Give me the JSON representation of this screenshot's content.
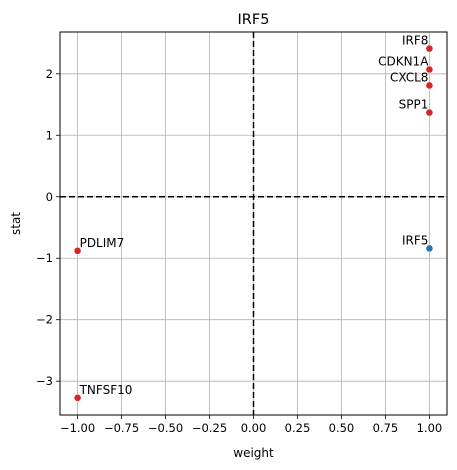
{
  "chart_data": {
    "type": "scatter",
    "title": "IRF5",
    "xlabel": "weight",
    "ylabel": "stat",
    "xlim": [
      -1.1,
      1.1
    ],
    "ylim": [
      -3.55,
      2.68
    ],
    "xticks": [
      -1.0,
      -0.75,
      -0.5,
      -0.25,
      0.0,
      0.25,
      0.5,
      0.75,
      1.0
    ],
    "xtick_labels": [
      "−1.00",
      "−0.75",
      "−0.50",
      "−0.25",
      "0.00",
      "0.25",
      "0.50",
      "0.75",
      "1.00"
    ],
    "yticks": [
      -3,
      -2,
      -1,
      0,
      1,
      2
    ],
    "ytick_labels": [
      "−3",
      "−2",
      "−1",
      "0",
      "1",
      "2"
    ],
    "grid": true,
    "reference_lines": {
      "x": 0,
      "y": 0,
      "style": "dashed",
      "color": "#000000"
    },
    "points": [
      {
        "label": "IRF8",
        "x": 1.0,
        "y": 2.41,
        "color": "#d62728",
        "label_side": "left"
      },
      {
        "label": "CDKN1A",
        "x": 1.0,
        "y": 2.07,
        "color": "#d62728",
        "label_side": "left"
      },
      {
        "label": "CXCL8",
        "x": 1.0,
        "y": 1.81,
        "color": "#d62728",
        "label_side": "left"
      },
      {
        "label": "SPP1",
        "x": 1.0,
        "y": 1.37,
        "color": "#d62728",
        "label_side": "left"
      },
      {
        "label": "IRF5",
        "x": 1.0,
        "y": -0.84,
        "color": "#1f77b4",
        "label_side": "left"
      },
      {
        "label": "PDLIM7",
        "x": -1.0,
        "y": -0.88,
        "color": "#d62728",
        "label_side": "right"
      },
      {
        "label": "TNFSF10",
        "x": -1.0,
        "y": -3.27,
        "color": "#d62728",
        "label_side": "right"
      }
    ]
  }
}
